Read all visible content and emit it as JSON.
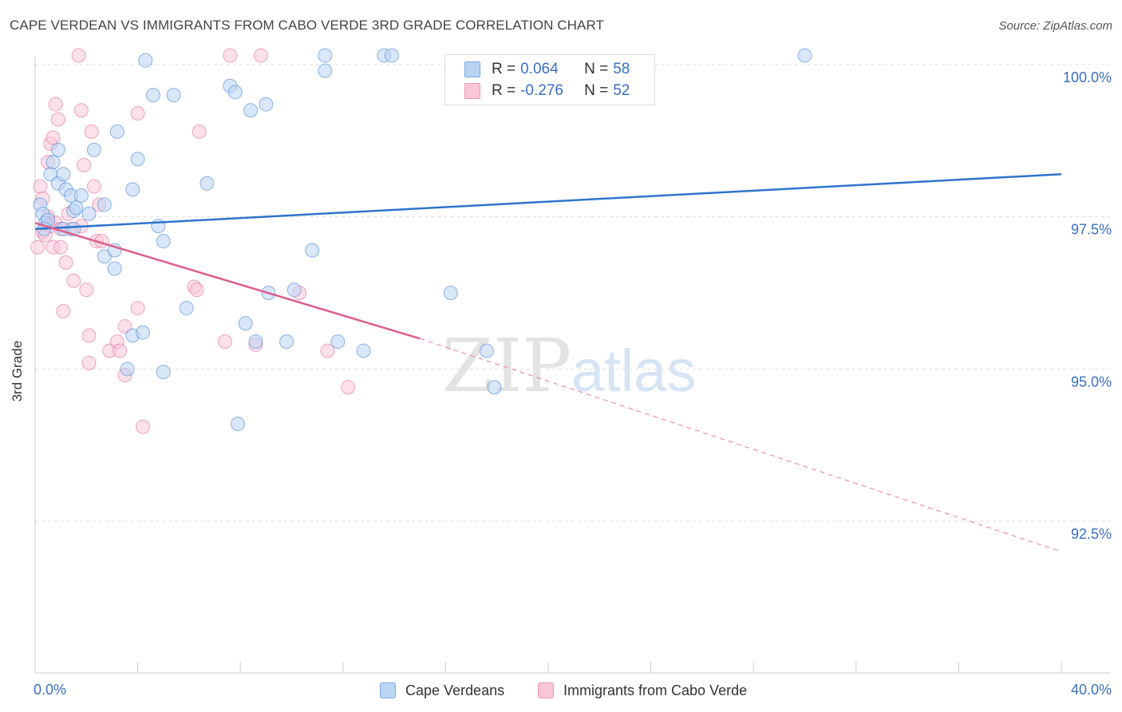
{
  "header": {
    "title": "CAPE VERDEAN VS IMMIGRANTS FROM CABO VERDE 3RD GRADE CORRELATION CHART",
    "source": "Source: ZipAtlas.com"
  },
  "watermark": {
    "part1": "ZIP",
    "part2": "atlas"
  },
  "legend": {
    "series1": {
      "r_label": "R =",
      "r_value": "0.064",
      "n_label": "N =",
      "n_value": "58",
      "color": "#a8c8f0"
    },
    "series2": {
      "r_label": "R =",
      "r_value": "-0.276",
      "n_label": "N =",
      "n_value": "52",
      "color": "#f8bcd0"
    }
  },
  "bottom_legend": {
    "series1_label": "Cape Verdeans",
    "series2_label": "Immigrants from Cabo Verde"
  },
  "chart_data": {
    "type": "scatter",
    "title": "CAPE VERDEAN VS IMMIGRANTS FROM CABO VERDE 3RD GRADE CORRELATION CHART",
    "xlabel": "",
    "ylabel": "3rd Grade",
    "xlim": [
      0,
      40
    ],
    "ylim": [
      90.2,
      100.5
    ],
    "x_tick_labels": [
      "0.0%",
      "40.0%"
    ],
    "y_ticks": [
      100.0,
      97.5,
      95.0,
      92.5
    ],
    "y_tick_labels": [
      "100.0%",
      "97.5%",
      "95.0%",
      "92.5%"
    ],
    "grid": true,
    "colors": {
      "series1": "#4a86d4",
      "series1_fill": "#b9d4f4",
      "series2": "#e0709a",
      "series2_fill": "#f9c6d8"
    },
    "series": [
      {
        "name": "Cape Verdeans",
        "trend": {
          "x": [
            0,
            40
          ],
          "y": [
            97.3,
            98.2
          ]
        },
        "points": [
          [
            0.2,
            97.7
          ],
          [
            0.3,
            97.55
          ],
          [
            0.4,
            97.4
          ],
          [
            0.5,
            97.45
          ],
          [
            0.6,
            98.2
          ],
          [
            0.7,
            98.4
          ],
          [
            0.9,
            98.05
          ],
          [
            0.9,
            98.6
          ],
          [
            1.1,
            97.3
          ],
          [
            1.1,
            98.2
          ],
          [
            1.2,
            97.95
          ],
          [
            1.4,
            97.85
          ],
          [
            1.5,
            97.6
          ],
          [
            1.6,
            97.65
          ],
          [
            1.8,
            97.85
          ],
          [
            2.1,
            97.55
          ],
          [
            2.3,
            98.6
          ],
          [
            2.7,
            97.7
          ],
          [
            2.7,
            96.85
          ],
          [
            3.1,
            96.95
          ],
          [
            3.1,
            96.65
          ],
          [
            3.2,
            98.9
          ],
          [
            3.6,
            95.0
          ],
          [
            3.8,
            95.55
          ],
          [
            3.8,
            97.95
          ],
          [
            4.0,
            98.45
          ],
          [
            4.2,
            95.6
          ],
          [
            4.3,
            100.07
          ],
          [
            4.6,
            99.5
          ],
          [
            4.8,
            97.35
          ],
          [
            5.0,
            97.1
          ],
          [
            5.0,
            94.95
          ],
          [
            5.4,
            99.5
          ],
          [
            5.9,
            96.0
          ],
          [
            6.7,
            98.05
          ],
          [
            7.6,
            99.65
          ],
          [
            7.8,
            99.55
          ],
          [
            7.9,
            94.1
          ],
          [
            8.2,
            95.75
          ],
          [
            8.4,
            99.25
          ],
          [
            8.6,
            95.45
          ],
          [
            9.0,
            99.35
          ],
          [
            9.1,
            96.25
          ],
          [
            9.8,
            95.45
          ],
          [
            10.1,
            96.3
          ],
          [
            10.8,
            96.95
          ],
          [
            11.3,
            99.9
          ],
          [
            11.3,
            100.15
          ],
          [
            11.8,
            95.45
          ],
          [
            12.8,
            95.3
          ],
          [
            13.6,
            100.15
          ],
          [
            13.9,
            100.15
          ],
          [
            16.2,
            96.25
          ],
          [
            17.6,
            95.3
          ],
          [
            17.9,
            94.7
          ],
          [
            30.0,
            100.15
          ],
          [
            1.5,
            97.3
          ],
          [
            0.35,
            97.3
          ]
        ]
      },
      {
        "name": "Immigrants from Cabo Verde",
        "trend": {
          "x": [
            0,
            15
          ],
          "y": [
            97.4,
            95.5
          ]
        },
        "trend_dashed": {
          "x": [
            15,
            40
          ],
          "y": [
            95.5,
            92.0
          ]
        },
        "points": [
          [
            0.1,
            97.0
          ],
          [
            0.2,
            98.0
          ],
          [
            0.3,
            97.25
          ],
          [
            0.3,
            97.8
          ],
          [
            0.4,
            97.2
          ],
          [
            0.5,
            97.5
          ],
          [
            0.5,
            97.4
          ],
          [
            0.5,
            98.4
          ],
          [
            0.6,
            98.7
          ],
          [
            0.6,
            97.35
          ],
          [
            0.7,
            98.8
          ],
          [
            0.7,
            97.0
          ],
          [
            0.8,
            99.35
          ],
          [
            0.8,
            97.4
          ],
          [
            0.9,
            99.1
          ],
          [
            1.0,
            97.0
          ],
          [
            1.0,
            97.3
          ],
          [
            1.1,
            95.95
          ],
          [
            1.2,
            96.75
          ],
          [
            1.3,
            97.55
          ],
          [
            1.4,
            97.3
          ],
          [
            1.5,
            96.45
          ],
          [
            1.7,
            100.15
          ],
          [
            1.8,
            97.35
          ],
          [
            1.8,
            99.25
          ],
          [
            1.9,
            98.35
          ],
          [
            2.0,
            96.3
          ],
          [
            2.1,
            95.1
          ],
          [
            2.1,
            95.55
          ],
          [
            2.2,
            98.9
          ],
          [
            2.3,
            98.0
          ],
          [
            2.4,
            97.1
          ],
          [
            2.5,
            97.7
          ],
          [
            2.6,
            97.1
          ],
          [
            2.9,
            95.3
          ],
          [
            3.2,
            95.45
          ],
          [
            3.3,
            95.3
          ],
          [
            3.5,
            95.7
          ],
          [
            3.5,
            94.9
          ],
          [
            4.0,
            96.0
          ],
          [
            4.0,
            99.2
          ],
          [
            4.2,
            94.05
          ],
          [
            6.2,
            96.35
          ],
          [
            6.3,
            96.3
          ],
          [
            6.4,
            98.9
          ],
          [
            7.4,
            95.45
          ],
          [
            7.6,
            100.15
          ],
          [
            8.6,
            95.4
          ],
          [
            8.8,
            100.15
          ],
          [
            10.3,
            96.25
          ],
          [
            11.4,
            95.3
          ],
          [
            12.2,
            94.7
          ]
        ]
      }
    ]
  }
}
